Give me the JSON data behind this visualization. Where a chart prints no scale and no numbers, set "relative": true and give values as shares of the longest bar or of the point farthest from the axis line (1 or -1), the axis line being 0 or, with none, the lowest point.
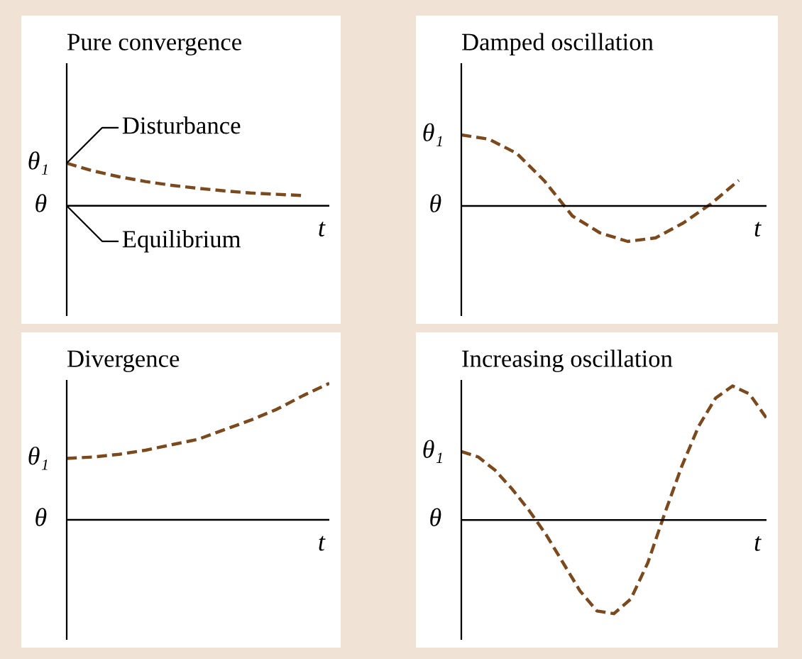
{
  "chart_data": [
    {
      "type": "line",
      "relative": true,
      "title": "Pure convergence",
      "xlabel": "t",
      "line_style": "dashed",
      "marker": "none",
      "categories": [
        null,
        null,
        null,
        null,
        null,
        null,
        null,
        null,
        null,
        null,
        null
      ],
      "series": [
        {
          "color": "#7a4a1e",
          "values": [
            1.0,
            0.82,
            0.68,
            0.57,
            0.48,
            0.41,
            0.35,
            0.3,
            0.27,
            0.24,
            null
          ]
        }
      ],
      "ref_lines": [
        {
          "axis": "y",
          "value": 0,
          "label": "θ"
        }
      ],
      "annotations": [
        "θ₁",
        "Disturbance",
        "Equilibrium"
      ]
    },
    {
      "type": "line",
      "relative": true,
      "title": "Damped oscillation",
      "xlabel": "t",
      "line_style": "dashed",
      "marker": "none",
      "categories": [
        null,
        null,
        null,
        null,
        null,
        null,
        null,
        null,
        null,
        null,
        null,
        null
      ],
      "series": [
        {
          "color": "#7a4a1e",
          "values": [
            1.0,
            0.94,
            0.74,
            0.35,
            -0.14,
            -0.38,
            -0.5,
            -0.45,
            -0.24,
            0.03,
            0.36,
            null
          ]
        }
      ],
      "ref_lines": [
        {
          "axis": "y",
          "value": 0,
          "label": "θ"
        }
      ],
      "annotations": [
        "θ₁"
      ]
    },
    {
      "type": "line",
      "relative": true,
      "title": "Divergence",
      "xlabel": "t",
      "line_style": "dashed",
      "marker": "none",
      "categories": [
        null,
        null,
        null,
        null,
        null,
        null,
        null,
        null,
        null,
        null,
        null
      ],
      "series": [
        {
          "color": "#7a4a1e",
          "values": [
            0.45,
            0.46,
            0.48,
            0.51,
            0.55,
            0.59,
            0.66,
            0.73,
            0.81,
            0.91,
            1.0
          ]
        }
      ],
      "ref_lines": [
        {
          "axis": "y",
          "value": 0,
          "label": "θ"
        }
      ],
      "annotations": [
        "θ₁"
      ]
    },
    {
      "type": "line",
      "relative": true,
      "title": "Increasing oscillation",
      "xlabel": "t",
      "line_style": "dashed",
      "marker": "none",
      "categories": [
        null,
        null,
        null,
        null,
        null,
        null,
        null,
        null,
        null,
        null,
        null,
        null,
        null,
        null,
        null,
        null,
        null,
        null,
        null
      ],
      "series": [
        {
          "color": "#7a4a1e",
          "values": [
            0.51,
            0.47,
            0.37,
            0.23,
            0.07,
            -0.11,
            -0.32,
            -0.53,
            -0.68,
            -0.7,
            -0.59,
            -0.32,
            0.05,
            0.4,
            0.7,
            0.91,
            1.0,
            0.94,
            0.76
          ]
        }
      ],
      "ref_lines": [
        {
          "axis": "y",
          "value": 0,
          "label": "θ"
        }
      ],
      "annotations": [
        "θ₁"
      ]
    }
  ]
}
